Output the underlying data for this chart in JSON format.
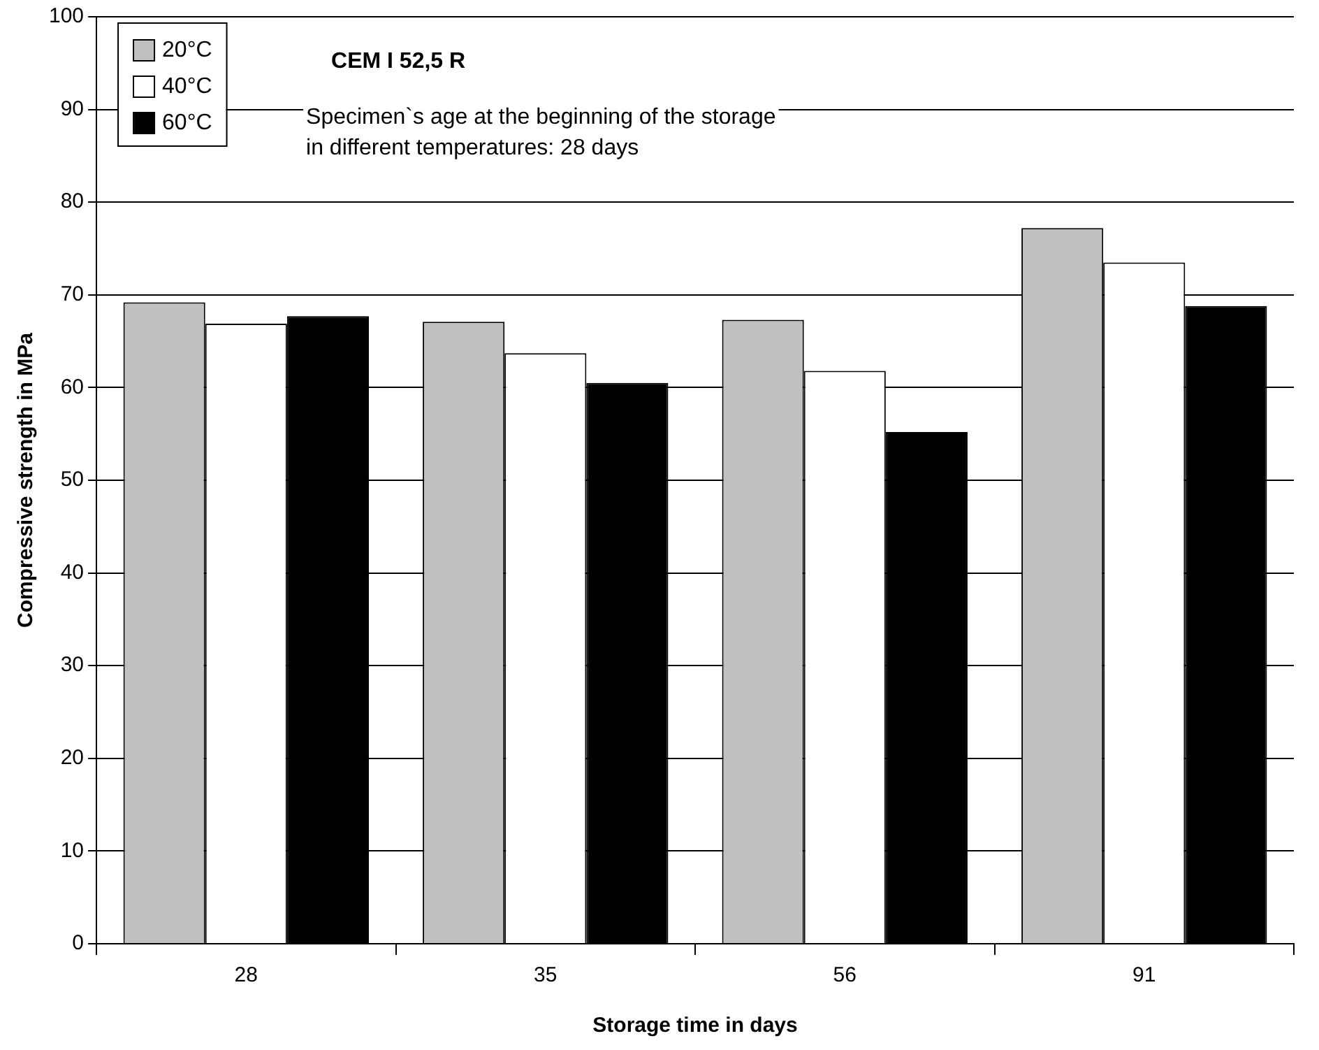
{
  "chart_data": {
    "type": "bar",
    "xlabel": "Storage time in days",
    "ylabel": "Compressive strength in MPa",
    "categories": [
      "28",
      "35",
      "56",
      "91"
    ],
    "series": [
      {
        "name": "20°C",
        "color": "#c0c0c0",
        "values": [
          69.2,
          67.1,
          67.3,
          77.2
        ]
      },
      {
        "name": "40°C",
        "color": "#ffffff",
        "values": [
          66.9,
          63.7,
          61.8,
          73.5
        ]
      },
      {
        "name": "60°C",
        "color": "#000000",
        "values": [
          67.7,
          60.5,
          55.2,
          68.8
        ]
      }
    ],
    "ylim": [
      0,
      100
    ],
    "yticks": [
      0,
      10,
      20,
      30,
      40,
      50,
      60,
      70,
      80,
      90,
      100
    ],
    "grid": "y",
    "legend": "top left",
    "annotations": [
      "CEM I 52,5 R",
      "Specimen`s age at the beginning of the storage\nin different temperatures: 28 days"
    ]
  }
}
